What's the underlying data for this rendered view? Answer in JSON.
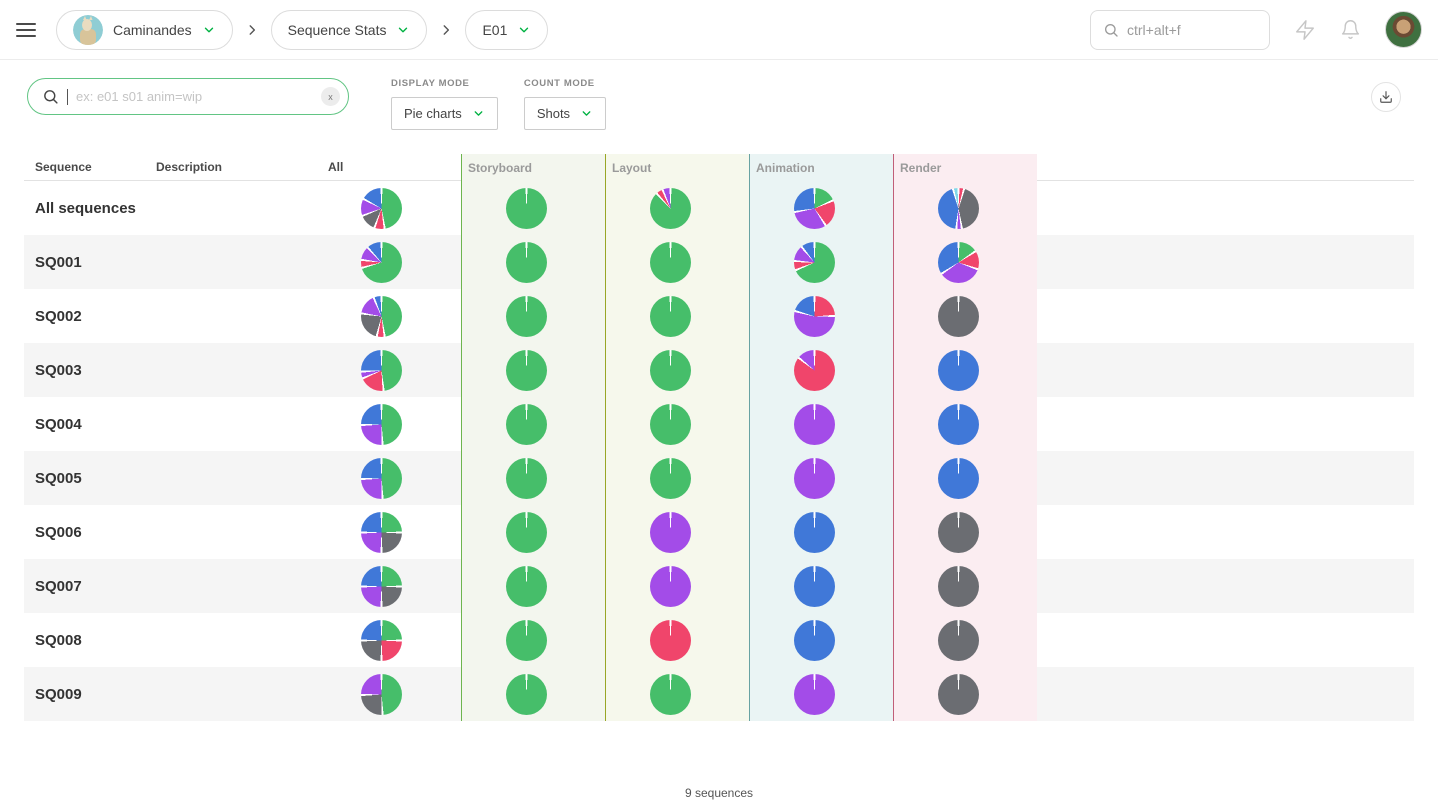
{
  "topbar": {
    "project_label": "Caminandes",
    "section_label": "Sequence Stats",
    "episode_label": "E01",
    "global_search_placeholder": "ctrl+alt+f"
  },
  "filters": {
    "search_placeholder": "ex: e01 s01 anim=wip",
    "clear_label": "x",
    "display_mode_label": "DISPLAY MODE",
    "display_mode_value": "Pie charts",
    "count_mode_label": "COUNT MODE",
    "count_mode_value": "Shots"
  },
  "table": {
    "columns": [
      {
        "key": "sequence",
        "label": "Sequence"
      },
      {
        "key": "description",
        "label": "Description"
      },
      {
        "key": "all",
        "label": "All"
      },
      {
        "key": "storyboard",
        "label": "Storyboard",
        "bg": "#f3f6ee",
        "border": "#6db54e"
      },
      {
        "key": "layout",
        "label": "Layout",
        "bg": "#f6f8ec",
        "border": "#98a627"
      },
      {
        "key": "animation",
        "label": "Animation",
        "bg": "#eaf4f4",
        "border": "#68a3a3"
      },
      {
        "key": "render",
        "label": "Render",
        "bg": "#fbedf1",
        "border": "#c05e78"
      }
    ],
    "status_colors": {
      "done": "#46be6a",
      "wip": "#4078d8",
      "wfa": "#a34ce8",
      "retake": "#f0456b",
      "todo": "#6b6d72",
      "ready": "#82d8e8"
    },
    "rows": [
      {
        "sequence": "All sequences",
        "description": "",
        "pies": {
          "all": [
            [
              "done",
              50
            ],
            [
              "retake",
              7
            ],
            [
              "todo",
              13
            ],
            [
              "wfa",
              13
            ],
            [
              "wip",
              17
            ]
          ],
          "storyboard": [
            [
              "done",
              100
            ]
          ],
          "layout": [
            [
              "done",
              91
            ],
            [
              "retake",
              4
            ],
            [
              "wfa",
              5
            ]
          ],
          "animation": [
            [
              "done",
              18
            ],
            [
              "retake",
              22
            ],
            [
              "wfa",
              32
            ],
            [
              "wip",
              28
            ]
          ],
          "render": [
            [
              "retake",
              3
            ],
            [
              "todo",
              45
            ],
            [
              "wfa",
              3
            ],
            [
              "wip",
              46
            ],
            [
              "ready",
              3
            ]
          ]
        }
      },
      {
        "sequence": "SQ001",
        "description": "",
        "pies": {
          "all": [
            [
              "done",
              74
            ],
            [
              "retake",
              5
            ],
            [
              "wfa",
              10
            ],
            [
              "wip",
              11
            ]
          ],
          "storyboard": [
            [
              "done",
              100
            ]
          ],
          "layout": [
            [
              "done",
              100
            ]
          ],
          "animation": [
            [
              "done",
              72
            ],
            [
              "retake",
              6
            ],
            [
              "wfa",
              12
            ],
            [
              "wip",
              10
            ]
          ],
          "render": [
            [
              "done",
              15
            ],
            [
              "retake",
              14
            ],
            [
              "wfa",
              36
            ],
            [
              "wip",
              35
            ]
          ]
        }
      },
      {
        "sequence": "SQ002",
        "description": "",
        "pies": {
          "all": [
            [
              "done",
              50
            ],
            [
              "retake",
              5
            ],
            [
              "todo",
              24
            ],
            [
              "wfa",
              16
            ],
            [
              "wip",
              5
            ]
          ],
          "storyboard": [
            [
              "done",
              100
            ]
          ],
          "layout": [
            [
              "done",
              100
            ]
          ],
          "animation": [
            [
              "retake",
              24
            ],
            [
              "wfa",
              56
            ],
            [
              "wip",
              20
            ]
          ],
          "render": [
            [
              "todo",
              100
            ]
          ]
        }
      },
      {
        "sequence": "SQ003",
        "description": "",
        "pies": {
          "all": [
            [
              "done",
              50
            ],
            [
              "retake",
              20
            ],
            [
              "wfa",
              4
            ],
            [
              "wip",
              26
            ]
          ],
          "storyboard": [
            [
              "done",
              100
            ]
          ],
          "layout": [
            [
              "done",
              100
            ]
          ],
          "animation": [
            [
              "retake",
              87
            ],
            [
              "wfa",
              13
            ]
          ],
          "render": [
            [
              "wip",
              100
            ]
          ]
        }
      },
      {
        "sequence": "SQ004",
        "description": "",
        "pies": {
          "all": [
            [
              "done",
              50
            ],
            [
              "wfa",
              25
            ],
            [
              "wip",
              25
            ]
          ],
          "storyboard": [
            [
              "done",
              100
            ]
          ],
          "layout": [
            [
              "done",
              100
            ]
          ],
          "animation": [
            [
              "wfa",
              100
            ]
          ],
          "render": [
            [
              "wip",
              100
            ]
          ]
        }
      },
      {
        "sequence": "SQ005",
        "description": "",
        "pies": {
          "all": [
            [
              "done",
              50
            ],
            [
              "wfa",
              25
            ],
            [
              "wip",
              25
            ]
          ],
          "storyboard": [
            [
              "done",
              100
            ]
          ],
          "layout": [
            [
              "done",
              100
            ]
          ],
          "animation": [
            [
              "wfa",
              100
            ]
          ],
          "render": [
            [
              "wip",
              100
            ]
          ]
        }
      },
      {
        "sequence": "SQ006",
        "description": "",
        "pies": {
          "all": [
            [
              "done",
              25
            ],
            [
              "todo",
              25
            ],
            [
              "wfa",
              25
            ],
            [
              "wip",
              25
            ]
          ],
          "storyboard": [
            [
              "done",
              100
            ]
          ],
          "layout": [
            [
              "wfa",
              100
            ]
          ],
          "animation": [
            [
              "wip",
              100
            ]
          ],
          "render": [
            [
              "todo",
              100
            ]
          ]
        }
      },
      {
        "sequence": "SQ007",
        "description": "",
        "pies": {
          "all": [
            [
              "done",
              25
            ],
            [
              "todo",
              25
            ],
            [
              "wfa",
              25
            ],
            [
              "wip",
              25
            ]
          ],
          "storyboard": [
            [
              "done",
              100
            ]
          ],
          "layout": [
            [
              "wfa",
              100
            ]
          ],
          "animation": [
            [
              "wip",
              100
            ]
          ],
          "render": [
            [
              "todo",
              100
            ]
          ]
        }
      },
      {
        "sequence": "SQ008",
        "description": "",
        "pies": {
          "all": [
            [
              "done",
              25
            ],
            [
              "retake",
              25
            ],
            [
              "todo",
              25
            ],
            [
              "wip",
              25
            ]
          ],
          "storyboard": [
            [
              "done",
              100
            ]
          ],
          "layout": [
            [
              "retake",
              100
            ]
          ],
          "animation": [
            [
              "wip",
              100
            ]
          ],
          "render": [
            [
              "todo",
              100
            ]
          ]
        }
      },
      {
        "sequence": "SQ009",
        "description": "",
        "pies": {
          "all": [
            [
              "done",
              50
            ],
            [
              "todo",
              25
            ],
            [
              "wfa",
              25
            ]
          ],
          "storyboard": [
            [
              "done",
              100
            ]
          ],
          "layout": [
            [
              "done",
              100
            ]
          ],
          "animation": [
            [
              "wfa",
              100
            ]
          ],
          "render": [
            [
              "todo",
              100
            ]
          ]
        }
      }
    ]
  },
  "footer": {
    "count_label": "9 sequences"
  }
}
